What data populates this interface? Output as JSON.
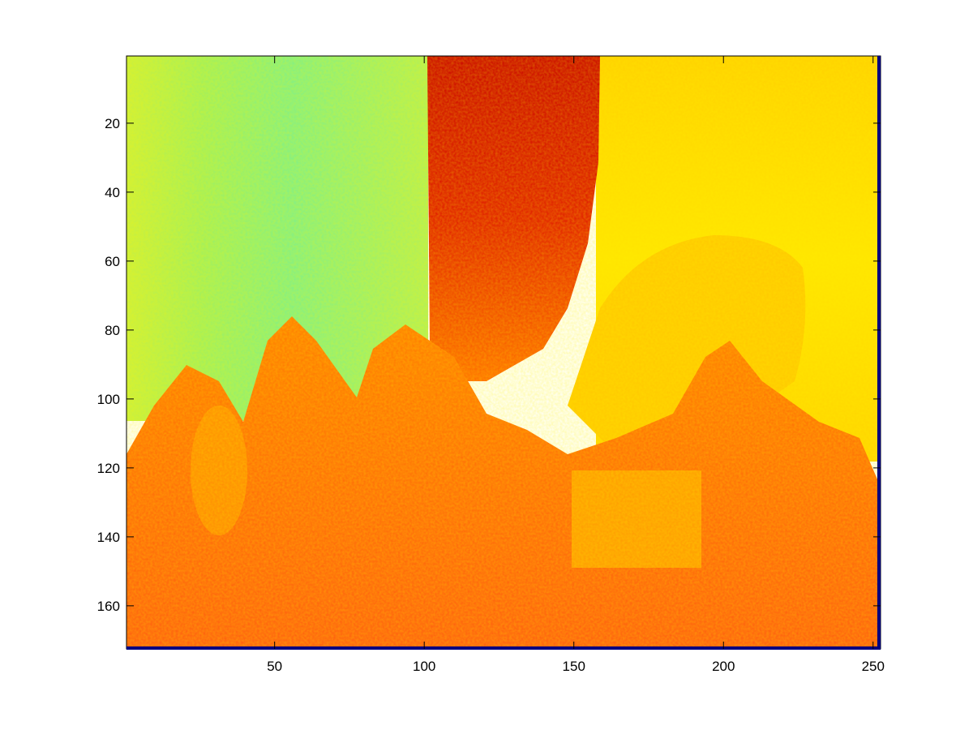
{
  "chart_data": {
    "type": "heatmap",
    "title": "",
    "xlabel": "",
    "ylabel": "",
    "colormap": "jet",
    "xlim": [
      0.5,
      252.5
    ],
    "ylim": [
      0.5,
      172.5
    ],
    "y_reversed": true,
    "xticks": [
      50,
      100,
      150,
      200,
      250
    ],
    "yticks": [
      20,
      40,
      60,
      80,
      100,
      120,
      140,
      160
    ],
    "xtick_labels": [
      "50",
      "100",
      "150",
      "200",
      "250"
    ],
    "ytick_labels": [
      "20",
      "40",
      "60",
      "80",
      "100",
      "120",
      "140",
      "160"
    ],
    "image_size": {
      "cols": 252,
      "rows": 172
    },
    "image_description_regions": [
      {
        "label": "left buildings (cyan/yellow-green)",
        "x": [
          1,
          100
        ],
        "y": [
          1,
          95
        ],
        "value": 0.48
      },
      {
        "label": "dark red banner",
        "x": [
          100,
          158
        ],
        "y": [
          1,
          90
        ],
        "value": 0.92
      },
      {
        "label": "right background (yellow)",
        "x": [
          158,
          252
        ],
        "y": [
          1,
          110
        ],
        "value": 0.68
      },
      {
        "label": "crowd foreground (orange)",
        "x": [
          1,
          252
        ],
        "y": [
          100,
          172
        ],
        "value": 0.82
      }
    ],
    "colors": {
      "axis_edge": "#000000",
      "bottom_right_border": "#00007f",
      "low": "#00bfff",
      "mid": "#ffff00",
      "high": "#ff3300"
    }
  }
}
